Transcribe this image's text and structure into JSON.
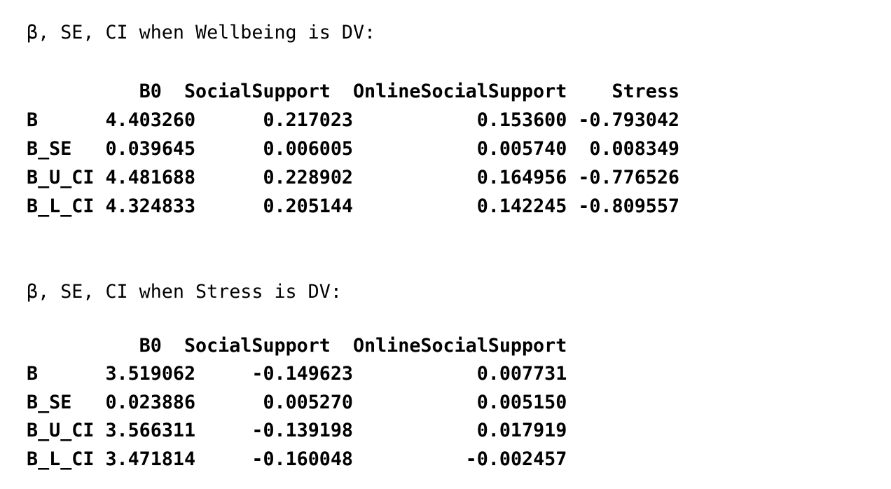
{
  "output_blocks": [
    {
      "heading": "β, SE, CI when Wellbeing is DV:",
      "columns": [
        "B0",
        "SocialSupport",
        "OnlineSocialSupport",
        "Stress"
      ],
      "rows": [
        {
          "label": "B",
          "values": [
            "4.403260",
            "0.217023",
            "0.153600",
            "-0.793042"
          ]
        },
        {
          "label": "B_SE",
          "values": [
            "0.039645",
            "0.006005",
            "0.005740",
            "0.008349"
          ]
        },
        {
          "label": "B_U_CI",
          "values": [
            "4.481688",
            "0.228902",
            "0.164956",
            "-0.776526"
          ]
        },
        {
          "label": "B_L_CI",
          "values": [
            "4.324833",
            "0.205144",
            "0.142245",
            "-0.809557"
          ]
        }
      ]
    },
    {
      "heading": "β, SE, CI when Stress is DV:",
      "columns": [
        "B0",
        "SocialSupport",
        "OnlineSocialSupport"
      ],
      "rows": [
        {
          "label": "B",
          "values": [
            "3.519062",
            "-0.149623",
            "0.007731"
          ]
        },
        {
          "label": "B_SE",
          "values": [
            "0.023886",
            "0.005270",
            "0.005150"
          ]
        },
        {
          "label": "B_U_CI",
          "values": [
            "3.566311",
            "-0.139198",
            "0.017919"
          ]
        },
        {
          "label": "B_L_CI",
          "values": [
            "3.471814",
            "-0.160048",
            "-0.002457"
          ]
        }
      ]
    }
  ]
}
